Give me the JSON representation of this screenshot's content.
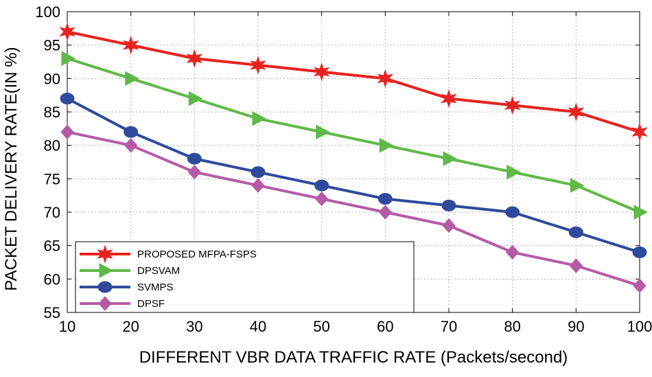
{
  "chart_data": {
    "type": "line",
    "xlabel": "DIFFERENT VBR DATA TRAFFIC RATE (Packets/second)",
    "ylabel": "PACKET DELIVERY RATE(IN %)",
    "xlim": [
      10,
      100
    ],
    "ylim": [
      55,
      100
    ],
    "x_ticks": [
      10,
      20,
      30,
      40,
      50,
      60,
      70,
      80,
      90,
      100
    ],
    "y_ticks": [
      55,
      60,
      65,
      70,
      75,
      80,
      85,
      90,
      95,
      100
    ],
    "grid": true,
    "legend_position": "bottom-left",
    "x": [
      10,
      20,
      30,
      40,
      50,
      60,
      70,
      80,
      90,
      100
    ],
    "series": [
      {
        "name": "PROPOSED MFPA-FSPS",
        "color": "#e8221f",
        "marker": "star",
        "values": [
          97,
          95,
          93,
          92,
          91,
          90,
          87,
          86,
          85,
          82
        ]
      },
      {
        "name": "DPSVAM",
        "color": "#5fb946",
        "marker": "triangle-right",
        "values": [
          93,
          90,
          87,
          84,
          82,
          80,
          78,
          76,
          74,
          70
        ]
      },
      {
        "name": "SVMPS",
        "color": "#2f4a9c",
        "marker": "circle",
        "values": [
          87,
          82,
          78,
          76,
          74,
          72,
          71,
          70,
          67,
          64
        ]
      },
      {
        "name": "DPSF",
        "color": "#b65aa8",
        "marker": "diamond",
        "values": [
          82,
          80,
          76,
          74,
          72,
          70,
          68,
          64,
          62,
          59
        ]
      }
    ]
  }
}
